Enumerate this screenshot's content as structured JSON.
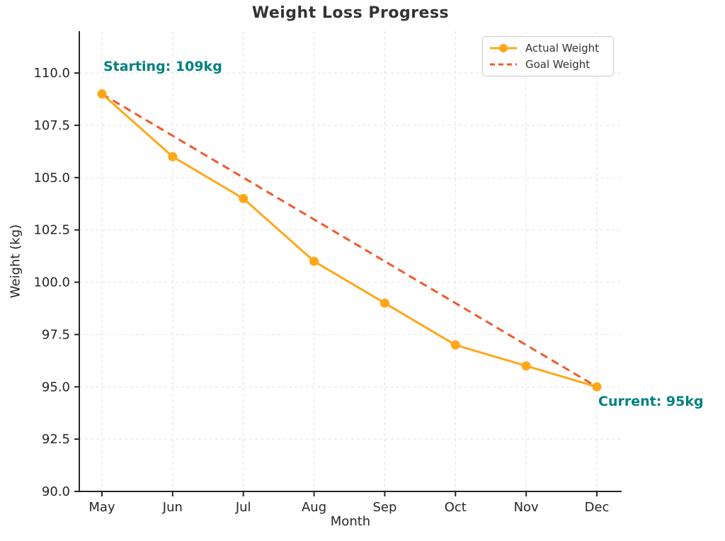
{
  "chart_data": {
    "type": "line",
    "title": "Weight Loss Progress",
    "xlabel": "Month",
    "ylabel": "Weight (kg)",
    "categories": [
      "May",
      "Jun",
      "Jul",
      "Aug",
      "Sep",
      "Oct",
      "Nov",
      "Dec"
    ],
    "series": [
      {
        "name": "Actual Weight",
        "values": [
          109,
          106,
          104,
          101,
          99,
          97,
          96,
          95
        ],
        "color": "#FFA719",
        "style": "solid",
        "marker": "circle"
      },
      {
        "name": "Goal Weight",
        "values": [
          109,
          107,
          105,
          103,
          101,
          99,
          97,
          95
        ],
        "color": "#F05A2B",
        "style": "dashed",
        "marker": "none"
      }
    ],
    "ylim": [
      90,
      112
    ],
    "yticks": [
      90,
      92.5,
      95,
      97.5,
      100,
      102.5,
      105,
      107.5,
      110
    ],
    "ytick_labels": [
      "90.0",
      "92.5",
      "95.0",
      "97.5",
      "100.0",
      "102.5",
      "105.0",
      "107.5",
      "110.0"
    ],
    "grid": true,
    "legend_position": "upper right",
    "annotations": [
      {
        "text": "Starting: 109kg",
        "color": "#008080",
        "anchor": "first-point"
      },
      {
        "text": "Current: 95kg",
        "color": "#008080",
        "anchor": "last-point"
      }
    ],
    "colors": {
      "spine": "#262626",
      "tick_label": "#262626",
      "grid": "#e2e2e2",
      "title": "#333333"
    }
  }
}
